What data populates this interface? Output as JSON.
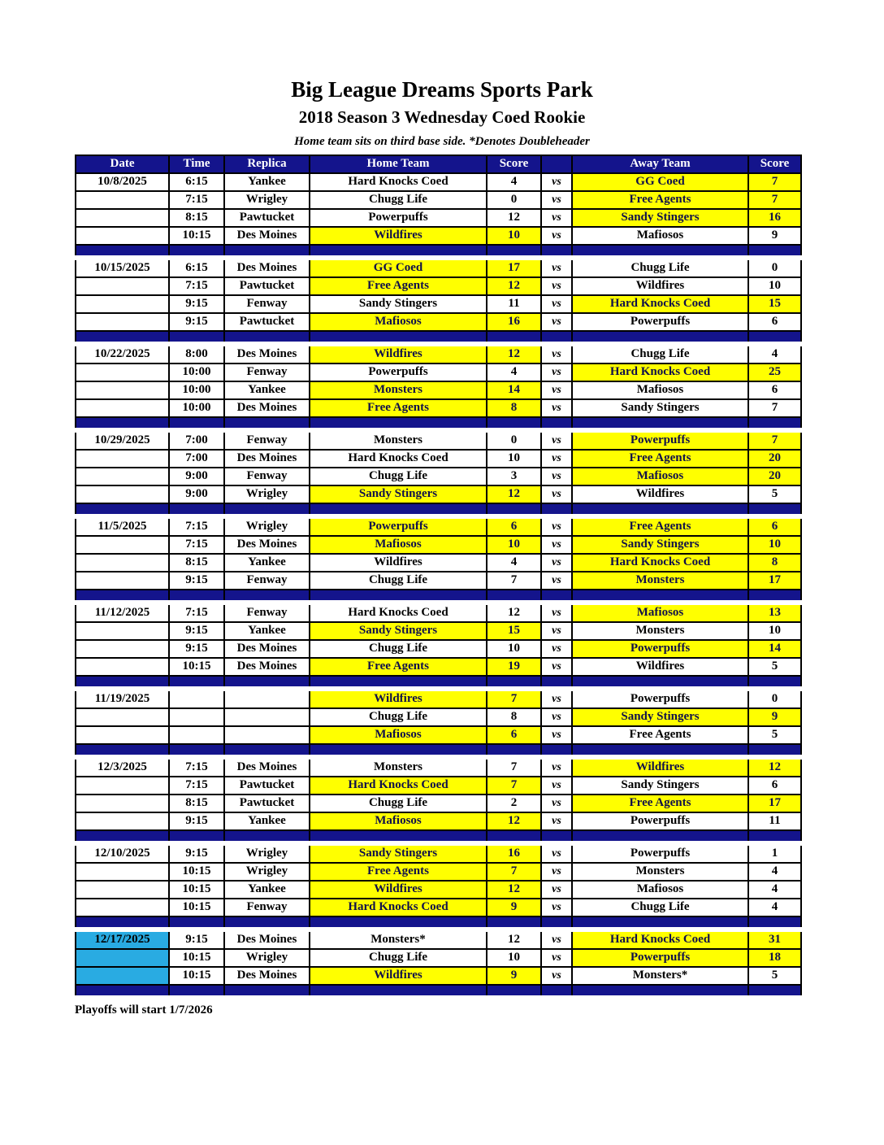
{
  "page": {
    "title": "Big League Dreams Sports Park",
    "subtitle": "2018 Season 3 Wednesday Coed Rookie",
    "note": "Home team sits on third base side.  *Denotes Doubleheader",
    "footer": "Playoffs will start 1/7/2026"
  },
  "colors": {
    "header_bg": "#14148C",
    "separator_bg": "#14148C",
    "winner_highlight": "#FFFF00",
    "date_highlight": "#29ABE2",
    "header_text": "#FFFFFF",
    "border": "#000000"
  },
  "table": {
    "headers": [
      "Date",
      "Time",
      "Replica",
      "Home Team",
      "Score",
      "",
      "Away Team",
      "Score"
    ],
    "vs_label": "vs",
    "weeks": [
      {
        "date": "10/8/2025",
        "date_highlight": false,
        "games": [
          {
            "time": "6:15",
            "replica": "Yankee",
            "home": "Hard Knocks Coed",
            "home_score": "4",
            "home_win": false,
            "away": "GG Coed",
            "away_score": "7",
            "away_win": true
          },
          {
            "time": "7:15",
            "replica": "Wrigley",
            "home": "Chugg Life",
            "home_score": "0",
            "home_win": false,
            "away": "Free Agents",
            "away_score": "7",
            "away_win": true
          },
          {
            "time": "8:15",
            "replica": "Pawtucket",
            "home": "Powerpuffs",
            "home_score": "12",
            "home_win": false,
            "away": "Sandy Stingers",
            "away_score": "16",
            "away_win": true
          },
          {
            "time": "10:15",
            "replica": "Des Moines",
            "home": "Wildfires",
            "home_score": "10",
            "home_win": true,
            "away": "Mafiosos",
            "away_score": "9",
            "away_win": false
          }
        ]
      },
      {
        "date": "10/15/2025",
        "date_highlight": false,
        "games": [
          {
            "time": "6:15",
            "replica": "Des Moines",
            "home": "GG Coed",
            "home_score": "17",
            "home_win": true,
            "away": "Chugg Life",
            "away_score": "0",
            "away_win": false
          },
          {
            "time": "7:15",
            "replica": "Pawtucket",
            "home": "Free Agents",
            "home_score": "12",
            "home_win": true,
            "away": "Wildfires",
            "away_score": "10",
            "away_win": false
          },
          {
            "time": "9:15",
            "replica": "Fenway",
            "home": "Sandy Stingers",
            "home_score": "11",
            "home_win": false,
            "away": "Hard Knocks Coed",
            "away_score": "15",
            "away_win": true
          },
          {
            "time": "9:15",
            "replica": "Pawtucket",
            "home": "Mafiosos",
            "home_score": "16",
            "home_win": true,
            "away": "Powerpuffs",
            "away_score": "6",
            "away_win": false
          }
        ]
      },
      {
        "date": "10/22/2025",
        "date_highlight": false,
        "games": [
          {
            "time": "8:00",
            "replica": "Des Moines",
            "home": "Wildfires",
            "home_score": "12",
            "home_win": true,
            "away": "Chugg Life",
            "away_score": "4",
            "away_win": false
          },
          {
            "time": "10:00",
            "replica": "Fenway",
            "home": "Powerpuffs",
            "home_score": "4",
            "home_win": false,
            "away": "Hard Knocks Coed",
            "away_score": "25",
            "away_win": true
          },
          {
            "time": "10:00",
            "replica": "Yankee",
            "home": "Monsters",
            "home_score": "14",
            "home_win": true,
            "away": "Mafiosos",
            "away_score": "6",
            "away_win": false
          },
          {
            "time": "10:00",
            "replica": "Des Moines",
            "home": "Free Agents",
            "home_score": "8",
            "home_win": true,
            "away": "Sandy Stingers",
            "away_score": "7",
            "away_win": false
          }
        ]
      },
      {
        "date": "10/29/2025",
        "date_highlight": false,
        "games": [
          {
            "time": "7:00",
            "replica": "Fenway",
            "home": "Monsters",
            "home_score": "0",
            "home_win": false,
            "away": "Powerpuffs",
            "away_score": "7",
            "away_win": true
          },
          {
            "time": "7:00",
            "replica": "Des Moines",
            "home": "Hard Knocks Coed",
            "home_score": "10",
            "home_win": false,
            "away": "Free Agents",
            "away_score": "20",
            "away_win": true
          },
          {
            "time": "9:00",
            "replica": "Fenway",
            "home": "Chugg Life",
            "home_score": "3",
            "home_win": false,
            "away": "Mafiosos",
            "away_score": "20",
            "away_win": true
          },
          {
            "time": "9:00",
            "replica": "Wrigley",
            "home": "Sandy Stingers",
            "home_score": "12",
            "home_win": true,
            "away": "Wildfires",
            "away_score": "5",
            "away_win": false
          }
        ]
      },
      {
        "date": "11/5/2025",
        "date_highlight": false,
        "games": [
          {
            "time": "7:15",
            "replica": "Wrigley",
            "home": "Powerpuffs",
            "home_score": "6",
            "home_win": true,
            "away": "Free Agents",
            "away_score": "6",
            "away_win": true
          },
          {
            "time": "7:15",
            "replica": "Des Moines",
            "home": "Mafiosos",
            "home_score": "10",
            "home_win": true,
            "away": "Sandy Stingers",
            "away_score": "10",
            "away_win": true
          },
          {
            "time": "8:15",
            "replica": "Yankee",
            "home": "Wildfires",
            "home_score": "4",
            "home_win": false,
            "away": "Hard Knocks Coed",
            "away_score": "8",
            "away_win": true
          },
          {
            "time": "9:15",
            "replica": "Fenway",
            "home": "Chugg Life",
            "home_score": "7",
            "home_win": false,
            "away": "Monsters",
            "away_score": "17",
            "away_win": true
          }
        ]
      },
      {
        "date": "11/12/2025",
        "date_highlight": false,
        "games": [
          {
            "time": "7:15",
            "replica": "Fenway",
            "home": "Hard Knocks Coed",
            "home_score": "12",
            "home_win": false,
            "away": "Mafiosos",
            "away_score": "13",
            "away_win": true
          },
          {
            "time": "9:15",
            "replica": "Yankee",
            "home": "Sandy Stingers",
            "home_score": "15",
            "home_win": true,
            "away": "Monsters",
            "away_score": "10",
            "away_win": false
          },
          {
            "time": "9:15",
            "replica": "Des Moines",
            "home": "Chugg Life",
            "home_score": "10",
            "home_win": false,
            "away": "Powerpuffs",
            "away_score": "14",
            "away_win": true
          },
          {
            "time": "10:15",
            "replica": "Des Moines",
            "home": "Free Agents",
            "home_score": "19",
            "home_win": true,
            "away": "Wildfires",
            "away_score": "5",
            "away_win": false
          }
        ]
      },
      {
        "date": "11/19/2025",
        "date_highlight": false,
        "games": [
          {
            "time": "",
            "replica": "",
            "home": "Wildfires",
            "home_score": "7",
            "home_win": true,
            "away": "Powerpuffs",
            "away_score": "0",
            "away_win": false
          },
          {
            "time": "",
            "replica": "",
            "home": "Chugg Life",
            "home_score": "8",
            "home_win": false,
            "away": "Sandy Stingers",
            "away_score": "9",
            "away_win": true
          },
          {
            "time": "",
            "replica": "",
            "home": "Mafiosos",
            "home_score": "6",
            "home_win": true,
            "away": "Free Agents",
            "away_score": "5",
            "away_win": false
          }
        ]
      },
      {
        "date": "12/3/2025",
        "date_highlight": false,
        "games": [
          {
            "time": "7:15",
            "replica": "Des Moines",
            "home": "Monsters",
            "home_score": "7",
            "home_win": false,
            "away": "Wildfires",
            "away_score": "12",
            "away_win": true
          },
          {
            "time": "7:15",
            "replica": "Pawtucket",
            "home": "Hard Knocks Coed",
            "home_score": "7",
            "home_win": true,
            "away": "Sandy Stingers",
            "away_score": "6",
            "away_win": false
          },
          {
            "time": "8:15",
            "replica": "Pawtucket",
            "home": "Chugg Life",
            "home_score": "2",
            "home_win": false,
            "away": "Free Agents",
            "away_score": "17",
            "away_win": true
          },
          {
            "time": "9:15",
            "replica": "Yankee",
            "home": "Mafiosos",
            "home_score": "12",
            "home_win": true,
            "away": "Powerpuffs",
            "away_score": "11",
            "away_win": false
          }
        ]
      },
      {
        "date": "12/10/2025",
        "date_highlight": false,
        "games": [
          {
            "time": "9:15",
            "replica": "Wrigley",
            "home": "Sandy Stingers",
            "home_score": "16",
            "home_win": true,
            "away": "Powerpuffs",
            "away_score": "1",
            "away_win": false
          },
          {
            "time": "10:15",
            "replica": "Wrigley",
            "home": "Free Agents",
            "home_score": "7",
            "home_win": true,
            "away": "Monsters",
            "away_score": "4",
            "away_win": false
          },
          {
            "time": "10:15",
            "replica": "Yankee",
            "home": "Wildfires",
            "home_score": "12",
            "home_win": true,
            "away": "Mafiosos",
            "away_score": "4",
            "away_win": false
          },
          {
            "time": "10:15",
            "replica": "Fenway",
            "home": "Hard Knocks Coed",
            "home_score": "9",
            "home_win": true,
            "away": "Chugg Life",
            "away_score": "4",
            "away_win": false
          }
        ]
      },
      {
        "date": "12/17/2025",
        "date_highlight": true,
        "games": [
          {
            "time": "9:15",
            "replica": "Des Moines",
            "home": "Monsters*",
            "home_score": "12",
            "home_win": false,
            "away": "Hard Knocks Coed",
            "away_score": "31",
            "away_win": true
          },
          {
            "time": "10:15",
            "replica": "Wrigley",
            "home": "Chugg Life",
            "home_score": "10",
            "home_win": false,
            "away": "Powerpuffs",
            "away_score": "18",
            "away_win": true
          },
          {
            "time": "10:15",
            "replica": "Des Moines",
            "home": "Wildfires",
            "home_score": "9",
            "home_win": true,
            "away": "Monsters*",
            "away_score": "5",
            "away_win": false
          }
        ]
      }
    ]
  }
}
